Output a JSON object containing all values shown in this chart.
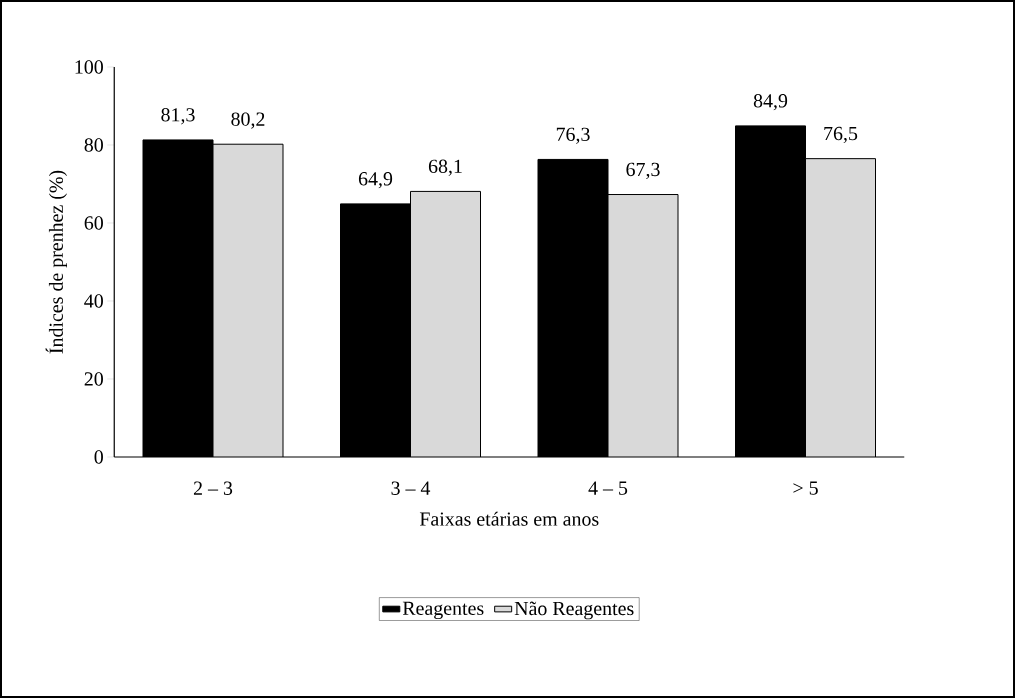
{
  "chart_data": {
    "type": "bar",
    "xlabel": "Faixas etárias em anos",
    "ylabel": "Índices de prenhez (%)",
    "categories": [
      "2 – 3",
      "3 – 4",
      "4 – 5",
      "> 5"
    ],
    "series": [
      {
        "name": "Reagentes",
        "color": "#000000",
        "values": [
          81.3,
          64.9,
          76.3,
          84.9
        ],
        "value_labels": [
          "81,3",
          "64,9",
          "76,3",
          "84,9"
        ]
      },
      {
        "name": "Não Reagentes",
        "color": "#d9d9d9",
        "values": [
          80.2,
          68.1,
          67.3,
          76.5
        ],
        "value_labels": [
          "80,2",
          "68,1",
          "67,3",
          "76,5"
        ]
      }
    ],
    "ylim": [
      0,
      100
    ],
    "yticks": [
      0,
      20,
      40,
      60,
      80,
      100
    ],
    "grid": false,
    "legend": "bottom"
  }
}
